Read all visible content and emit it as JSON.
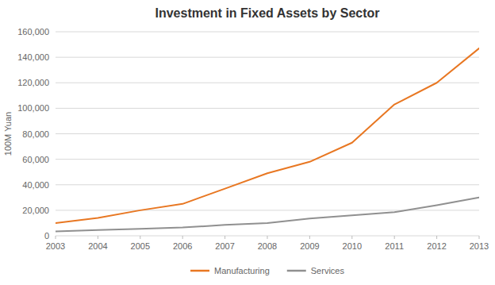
{
  "chart_data": {
    "type": "line",
    "title": "Investment in Fixed Assets by Sector",
    "ylabel": "100M Yuan",
    "x": [
      2003,
      2004,
      2005,
      2006,
      2007,
      2008,
      2009,
      2010,
      2011,
      2012,
      2013
    ],
    "series": [
      {
        "name": "Manufacturing",
        "color": "#E87722",
        "values": [
          10000,
          14000,
          20000,
          25000,
          37000,
          49000,
          58000,
          73000,
          103000,
          120000,
          147000
        ]
      },
      {
        "name": "Services",
        "color": "#909090",
        "values": [
          3500,
          4500,
          5500,
          6500,
          8500,
          10000,
          13500,
          16000,
          18500,
          24000,
          30000
        ]
      }
    ],
    "xlim": [
      2003,
      2013
    ],
    "xticks": [
      2003,
      2004,
      2005,
      2006,
      2007,
      2008,
      2009,
      2010,
      2011,
      2012,
      2013
    ],
    "ylim": [
      0,
      160000
    ],
    "yticks": [
      0,
      {
        "value": 20000,
        "label": "20,000"
      },
      {
        "value": 40000,
        "label": "40,000"
      },
      {
        "value": 60000,
        "label": "60,000"
      },
      {
        "value": 80000,
        "label": "80,000"
      },
      {
        "value": 100000,
        "label": "100,000"
      },
      {
        "value": 120000,
        "label": "120,000"
      },
      {
        "value": 140000,
        "label": "140,000"
      },
      {
        "value": 160000,
        "label": "160,000"
      }
    ],
    "grid": true,
    "legend": "bottom"
  }
}
